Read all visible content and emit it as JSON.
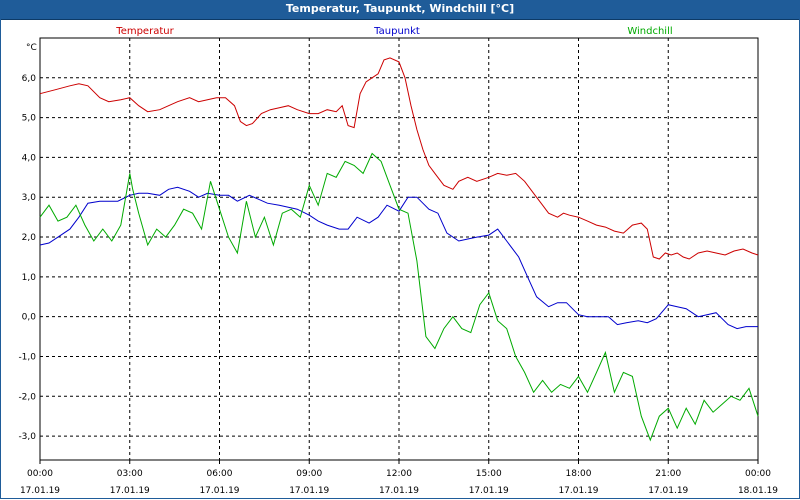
{
  "window": {
    "title": "Temperatur, Taupunkt, Windchill [°C]"
  },
  "chart_data": {
    "type": "line",
    "title": "Temperatur, Taupunkt, Windchill [°C]",
    "ylabel": "°C",
    "ylim": [
      -3.6,
      7.0
    ],
    "xlim": [
      0,
      24
    ],
    "yticks": [
      6.0,
      5.0,
      4.0,
      3.0,
      2.0,
      1.0,
      0.0,
      -1.0,
      -2.0,
      -3.0
    ],
    "ytick_labels": [
      "6,0",
      "5,0",
      "4,0",
      "3,0",
      "2,0",
      "1,0",
      "0,0",
      "-1,0",
      "-2,0",
      "-3,0"
    ],
    "xticks": [
      0,
      3,
      6,
      9,
      12,
      15,
      18,
      21,
      24
    ],
    "xtick_labels": [
      {
        "time": "00:00",
        "date": "17.01.19"
      },
      {
        "time": "03:00",
        "date": "17.01.19"
      },
      {
        "time": "06:00",
        "date": "17.01.19"
      },
      {
        "time": "09:00",
        "date": "17.01.19"
      },
      {
        "time": "12:00",
        "date": "17.01.19"
      },
      {
        "time": "15:00",
        "date": "17.01.19"
      },
      {
        "time": "18:00",
        "date": "17.01.19"
      },
      {
        "time": "21:00",
        "date": "17.01.19"
      },
      {
        "time": "00:00",
        "date": "18.01.19"
      }
    ],
    "grid": true,
    "series": [
      {
        "name": "Temperatur",
        "color": "#cc0000",
        "x": [
          0,
          0.5,
          1,
          1.3,
          1.6,
          2,
          2.3,
          2.7,
          3,
          3.3,
          3.6,
          4,
          4.3,
          4.6,
          5,
          5.3,
          5.6,
          5.9,
          6.2,
          6.5,
          6.7,
          6.9,
          7.1,
          7.4,
          7.7,
          8,
          8.3,
          8.6,
          9,
          9.3,
          9.6,
          9.9,
          10.1,
          10.3,
          10.5,
          10.7,
          10.9,
          11.1,
          11.3,
          11.5,
          11.7,
          12,
          12.2,
          12.4,
          12.6,
          12.8,
          13,
          13.2,
          13.5,
          13.8,
          14,
          14.3,
          14.6,
          15,
          15.3,
          15.6,
          15.9,
          16.2,
          16.5,
          16.8,
          17,
          17.3,
          17.5,
          17.7,
          18,
          18.3,
          18.6,
          18.9,
          19.2,
          19.5,
          19.8,
          20.1,
          20.3,
          20.5,
          20.7,
          20.9,
          21.1,
          21.3,
          21.5,
          21.7,
          22,
          22.3,
          22.6,
          22.9,
          23.2,
          23.5,
          23.8,
          24
        ],
        "y": [
          5.6,
          5.7,
          5.8,
          5.85,
          5.8,
          5.5,
          5.4,
          5.45,
          5.5,
          5.3,
          5.15,
          5.2,
          5.3,
          5.4,
          5.5,
          5.4,
          5.45,
          5.5,
          5.5,
          5.3,
          4.9,
          4.8,
          4.85,
          5.1,
          5.2,
          5.25,
          5.3,
          5.2,
          5.1,
          5.1,
          5.2,
          5.15,
          5.3,
          4.8,
          4.75,
          5.6,
          5.9,
          6.0,
          6.1,
          6.45,
          6.5,
          6.4,
          6.0,
          5.3,
          4.7,
          4.2,
          3.8,
          3.6,
          3.3,
          3.2,
          3.4,
          3.5,
          3.4,
          3.5,
          3.6,
          3.55,
          3.6,
          3.4,
          3.1,
          2.8,
          2.6,
          2.5,
          2.6,
          2.55,
          2.5,
          2.4,
          2.3,
          2.25,
          2.15,
          2.1,
          2.3,
          2.35,
          2.2,
          1.5,
          1.45,
          1.6,
          1.55,
          1.6,
          1.5,
          1.45,
          1.6,
          1.65,
          1.6,
          1.55,
          1.65,
          1.7,
          1.6,
          1.55
        ]
      },
      {
        "name": "Taupunkt",
        "color": "#0000cc",
        "x": [
          0,
          0.3,
          0.6,
          1,
          1.3,
          1.6,
          2,
          2.3,
          2.6,
          3,
          3.3,
          3.6,
          4,
          4.3,
          4.6,
          5,
          5.3,
          5.6,
          6,
          6.3,
          6.6,
          7,
          7.3,
          7.6,
          8,
          8.3,
          8.6,
          9,
          9.3,
          9.6,
          10,
          10.3,
          10.6,
          11,
          11.3,
          11.6,
          12,
          12.3,
          12.6,
          13,
          13.3,
          13.6,
          14,
          14.3,
          14.6,
          15,
          15.3,
          15.6,
          16,
          16.3,
          16.6,
          17,
          17.3,
          17.6,
          18,
          18.3,
          18.6,
          19,
          19.3,
          19.6,
          20,
          20.3,
          20.6,
          21,
          21.3,
          21.6,
          22,
          22.3,
          22.6,
          23,
          23.3,
          23.6,
          24
        ],
        "y": [
          1.8,
          1.85,
          2.0,
          2.2,
          2.5,
          2.85,
          2.9,
          2.9,
          2.9,
          3.05,
          3.1,
          3.1,
          3.05,
          3.2,
          3.25,
          3.15,
          3.0,
          3.1,
          3.05,
          3.05,
          2.9,
          3.05,
          2.95,
          2.85,
          2.8,
          2.75,
          2.7,
          2.55,
          2.4,
          2.3,
          2.2,
          2.2,
          2.5,
          2.35,
          2.5,
          2.8,
          2.65,
          3.0,
          3.0,
          2.7,
          2.6,
          2.1,
          1.9,
          1.95,
          2.0,
          2.05,
          2.2,
          1.9,
          1.5,
          1.0,
          0.5,
          0.25,
          0.35,
          0.35,
          0.05,
          0.0,
          0.0,
          0.0,
          -0.2,
          -0.15,
          -0.1,
          -0.15,
          -0.05,
          0.3,
          0.25,
          0.2,
          0.0,
          0.05,
          0.1,
          -0.2,
          -0.3,
          -0.25,
          -0.25
        ]
      },
      {
        "name": "Windchill",
        "color": "#00aa00",
        "x": [
          0,
          0.3,
          0.6,
          0.9,
          1.2,
          1.5,
          1.8,
          2.1,
          2.4,
          2.7,
          3,
          3.1,
          3.3,
          3.6,
          3.9,
          4.2,
          4.5,
          4.8,
          5.1,
          5.4,
          5.7,
          6,
          6.3,
          6.6,
          6.9,
          7.2,
          7.5,
          7.8,
          8.1,
          8.4,
          8.7,
          9,
          9.3,
          9.6,
          9.9,
          10.2,
          10.5,
          10.8,
          11.1,
          11.4,
          11.7,
          12,
          12.3,
          12.6,
          12.9,
          13.2,
          13.5,
          13.8,
          14.1,
          14.4,
          14.7,
          15,
          15.3,
          15.6,
          15.9,
          16.2,
          16.5,
          16.8,
          17.1,
          17.4,
          17.7,
          18,
          18.3,
          18.6,
          18.9,
          19.2,
          19.5,
          19.8,
          20.1,
          20.4,
          20.7,
          21,
          21.3,
          21.6,
          21.9,
          22.2,
          22.5,
          22.8,
          23.1,
          23.4,
          23.7,
          24
        ],
        "y": [
          2.5,
          2.8,
          2.4,
          2.5,
          2.8,
          2.3,
          1.9,
          2.2,
          1.9,
          2.3,
          3.6,
          3.2,
          2.6,
          1.8,
          2.2,
          2.0,
          2.3,
          2.7,
          2.6,
          2.2,
          3.4,
          2.7,
          2.0,
          1.6,
          2.9,
          2.0,
          2.5,
          1.8,
          2.6,
          2.7,
          2.5,
          3.3,
          2.8,
          3.6,
          3.5,
          3.9,
          3.8,
          3.6,
          4.1,
          3.9,
          3.3,
          2.7,
          2.6,
          1.4,
          -0.5,
          -0.8,
          -0.3,
          0.0,
          -0.3,
          -0.4,
          0.3,
          0.6,
          -0.1,
          -0.3,
          -1.0,
          -1.4,
          -1.9,
          -1.6,
          -1.9,
          -1.7,
          -1.8,
          -1.5,
          -1.9,
          -1.4,
          -0.9,
          -1.9,
          -1.4,
          -1.5,
          -2.5,
          -3.1,
          -2.5,
          -2.3,
          -2.8,
          -2.3,
          -2.7,
          -2.1,
          -2.4,
          -2.2,
          -2.0,
          -2.1,
          -1.8,
          -2.5
        ]
      }
    ]
  }
}
